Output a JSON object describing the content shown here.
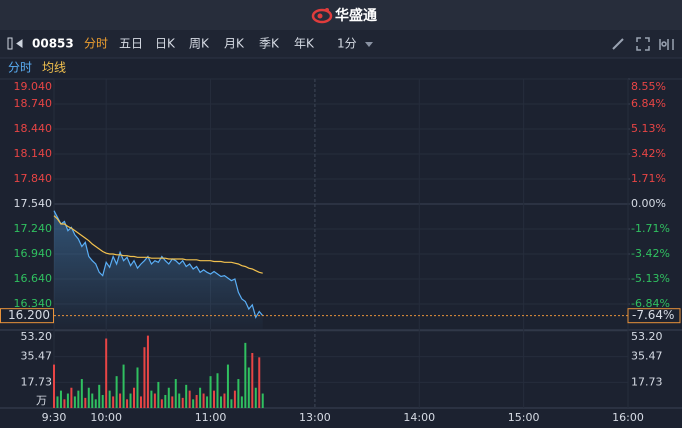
{
  "header": {
    "title": "华盛通"
  },
  "toolbar": {
    "symbol": "00853",
    "tabs": [
      "分时",
      "五日",
      "日K",
      "周K",
      "月K",
      "季K",
      "年K"
    ],
    "active_tab": 0,
    "interval": "1分"
  },
  "chart_data": {
    "type": "line",
    "x": [
      0,
      2,
      4,
      6,
      8,
      10,
      12,
      14,
      16,
      18,
      20,
      22,
      24,
      26,
      28,
      30,
      32,
      34,
      36,
      38,
      40,
      42,
      44,
      46,
      48,
      50,
      52,
      54,
      56,
      58,
      60,
      62,
      64,
      66,
      68,
      70,
      72,
      74,
      76,
      78,
      80,
      82,
      84,
      86,
      88,
      90,
      92,
      94,
      96,
      98,
      100,
      102,
      104,
      106,
      108,
      110,
      112,
      114,
      116,
      118,
      120
    ],
    "series": [
      {
        "name": "分时",
        "color": "#5aaef5",
        "values": [
          17.46,
          17.38,
          17.3,
          17.33,
          17.22,
          17.26,
          17.17,
          17.12,
          17.03,
          17.08,
          16.91,
          16.86,
          16.82,
          16.72,
          16.68,
          16.84,
          16.78,
          16.91,
          16.82,
          16.96,
          16.86,
          16.9,
          16.8,
          16.86,
          16.77,
          16.82,
          16.86,
          16.91,
          16.82,
          16.86,
          16.84,
          16.91,
          16.86,
          16.82,
          16.88,
          16.86,
          16.82,
          16.86,
          16.79,
          16.82,
          16.76,
          16.79,
          16.72,
          16.75,
          16.72,
          16.7,
          16.73,
          16.7,
          16.67,
          16.68,
          16.65,
          16.62,
          16.64,
          16.48,
          16.4,
          16.37,
          16.28,
          16.33,
          16.18,
          16.25,
          16.2
        ]
      },
      {
        "name": "均线",
        "color": "#f2c14e",
        "values": [
          17.4,
          17.36,
          17.3,
          17.3,
          17.27,
          17.25,
          17.22,
          17.19,
          17.16,
          17.13,
          17.1,
          17.06,
          17.03,
          17.0,
          16.97,
          16.95,
          16.94,
          16.94,
          16.93,
          16.93,
          16.92,
          16.92,
          16.91,
          16.91,
          16.9,
          16.9,
          16.9,
          16.9,
          16.89,
          16.89,
          16.89,
          16.89,
          16.89,
          16.88,
          16.88,
          16.88,
          16.88,
          16.88,
          16.87,
          16.87,
          16.87,
          16.87,
          16.86,
          16.86,
          16.86,
          16.86,
          16.85,
          16.85,
          16.85,
          16.84,
          16.84,
          16.84,
          16.83,
          16.82,
          16.8,
          16.79,
          16.77,
          16.76,
          16.74,
          16.72,
          16.71
        ]
      }
    ],
    "xlim": [
      0,
      330
    ],
    "xticks": [
      {
        "value": 0,
        "label": "9:30"
      },
      {
        "value": 30,
        "label": "10:00"
      },
      {
        "value": 90,
        "label": "11:00"
      },
      {
        "value": 150,
        "label": "13:00"
      },
      {
        "value": 210,
        "label": "14:00"
      },
      {
        "value": 270,
        "label": "15:00"
      },
      {
        "value": 330,
        "label": "16:00"
      }
    ],
    "ylim": [
      16.04,
      19.04
    ],
    "yticks": [
      {
        "value": 19.04,
        "label": "19.040"
      },
      {
        "value": 18.74,
        "label": "18.740"
      },
      {
        "value": 18.44,
        "label": "18.440"
      },
      {
        "value": 18.14,
        "label": "18.140"
      },
      {
        "value": 17.84,
        "label": "17.840"
      },
      {
        "value": 17.54,
        "label": "17.540"
      },
      {
        "value": 17.24,
        "label": "17.240"
      },
      {
        "value": 16.94,
        "label": "16.940"
      },
      {
        "value": 16.64,
        "label": "16.640"
      },
      {
        "value": 16.34,
        "label": "16.340"
      }
    ],
    "y2lim": [
      -8.55,
      8.55
    ],
    "y2ticks": [
      {
        "value": 8.55,
        "label": "8.55%"
      },
      {
        "value": 6.84,
        "label": "6.84%"
      },
      {
        "value": 5.13,
        "label": "5.13%"
      },
      {
        "value": 3.42,
        "label": "3.42%"
      },
      {
        "value": 1.71,
        "label": "1.71%"
      },
      {
        "value": 0,
        "label": "0.00%"
      },
      {
        "value": -1.71,
        "label": "-1.71%"
      },
      {
        "value": -3.42,
        "label": "-3.42%"
      },
      {
        "value": -5.13,
        "label": "-5.13%"
      },
      {
        "value": -6.84,
        "label": "-6.84%"
      }
    ],
    "current_price": {
      "value": 16.2,
      "label": "16.200"
    },
    "current_change": {
      "value": -7.64,
      "label": "-7.64%"
    },
    "up_color": "#e84545",
    "down_color": "#30c060",
    "volume": {
      "values": [
        30,
        8,
        12,
        6,
        10,
        14,
        8,
        12,
        20,
        7,
        14,
        10,
        6,
        16,
        9,
        48,
        12,
        8,
        22,
        10,
        30,
        6,
        10,
        14,
        28,
        8,
        42,
        50,
        12,
        10,
        18,
        6,
        9,
        14,
        8,
        20,
        10,
        7,
        16,
        12,
        6,
        9,
        14,
        10,
        8,
        22,
        12,
        24,
        8,
        10,
        30,
        6,
        12,
        20,
        8,
        45,
        28,
        38,
        14,
        35,
        10
      ],
      "ylim": [
        0,
        53.2
      ],
      "yticks": [
        {
          "value": 53.2,
          "label": "53.20"
        },
        {
          "value": 35.47,
          "label": "35.47"
        },
        {
          "value": 17.73,
          "label": "17.73"
        }
      ],
      "unit": "万"
    }
  }
}
